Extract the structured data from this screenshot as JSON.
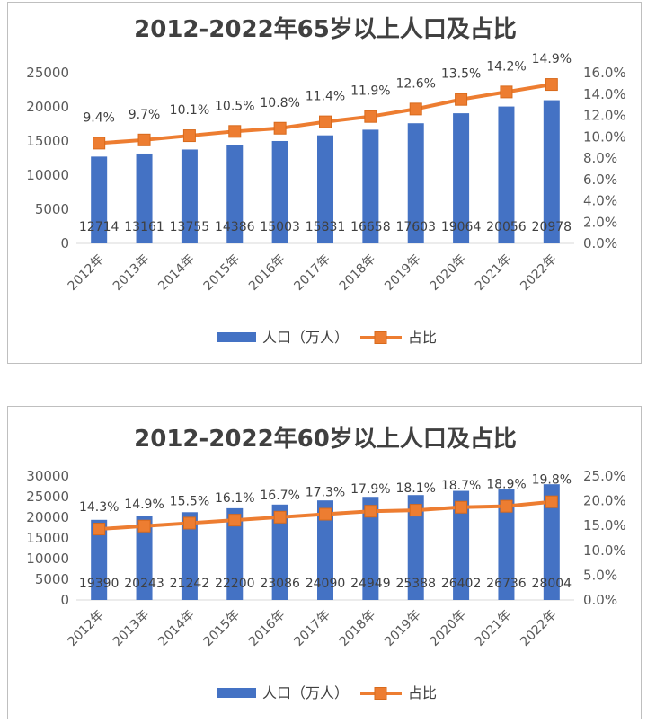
{
  "chart_data": [
    {
      "type": "bar",
      "title": "2012-2022年65岁以上人口及占比",
      "categories": [
        "2012年",
        "2013年",
        "2014年",
        "2015年",
        "2016年",
        "2017年",
        "2018年",
        "2019年",
        "2020年",
        "2021年",
        "2022年"
      ],
      "series": [
        {
          "name": "人口（万人）",
          "type": "bar",
          "axis": "left",
          "color": "#4472C4",
          "values": [
            12714,
            13161,
            13755,
            14386,
            15003,
            15831,
            16658,
            17603,
            19064,
            20056,
            20978
          ],
          "labels": [
            "12714",
            "13161",
            "13755",
            "14386",
            "15003",
            "15831",
            "16658",
            "17603",
            "19064",
            "20056",
            "20978"
          ]
        },
        {
          "name": "占比",
          "type": "line",
          "axis": "right",
          "color": "#ED7D31",
          "values": [
            9.4,
            9.7,
            10.1,
            10.5,
            10.8,
            11.4,
            11.9,
            12.6,
            13.5,
            14.2,
            14.9
          ],
          "labels": [
            "9.4%",
            "9.7%",
            "10.1%",
            "10.5%",
            "10.8%",
            "11.4%",
            "11.9%",
            "12.6%",
            "13.5%",
            "14.2%",
            "14.9%"
          ]
        }
      ],
      "ylim_left": [
        0,
        25000
      ],
      "yticks_left": [
        "25000",
        "20000",
        "15000",
        "10000",
        "5000",
        "0"
      ],
      "ylim_right": [
        0,
        16
      ],
      "yticks_right": [
        "16.0%",
        "14.0%",
        "12.0%",
        "10.0%",
        "8.0%",
        "6.0%",
        "4.0%",
        "2.0%",
        "0.0%"
      ],
      "legend_position": "bottom",
      "grid": false
    },
    {
      "type": "bar",
      "title": "2012-2022年60岁以上人口及占比",
      "categories": [
        "2012年",
        "2013年",
        "2014年",
        "2015年",
        "2016年",
        "2017年",
        "2018年",
        "2019年",
        "2020年",
        "2021年",
        "2022年"
      ],
      "series": [
        {
          "name": "人口（万人）",
          "type": "bar",
          "axis": "left",
          "color": "#4472C4",
          "values": [
            19390,
            20243,
            21242,
            22200,
            23086,
            24090,
            24949,
            25388,
            26402,
            26736,
            28004
          ],
          "labels": [
            "19390",
            "20243",
            "21242",
            "22200",
            "23086",
            "24090",
            "24949",
            "25388",
            "26402",
            "26736",
            "28004"
          ]
        },
        {
          "name": "占比",
          "type": "line",
          "axis": "right",
          "color": "#ED7D31",
          "values": [
            14.3,
            14.9,
            15.5,
            16.1,
            16.7,
            17.3,
            17.9,
            18.1,
            18.7,
            18.9,
            19.8
          ],
          "labels": [
            "14.3%",
            "14.9%",
            "15.5%",
            "16.1%",
            "16.7%",
            "17.3%",
            "17.9%",
            "18.1%",
            "18.7%",
            "18.9%",
            "19.8%"
          ]
        }
      ],
      "ylim_left": [
        0,
        30000
      ],
      "yticks_left": [
        "30000",
        "25000",
        "20000",
        "15000",
        "10000",
        "5000",
        "0"
      ],
      "ylim_right": [
        0,
        25
      ],
      "yticks_right": [
        "25.0%",
        "20.0%",
        "15.0%",
        "10.0%",
        "5.0%",
        "0.0%"
      ],
      "legend_position": "bottom",
      "grid": false
    }
  ]
}
